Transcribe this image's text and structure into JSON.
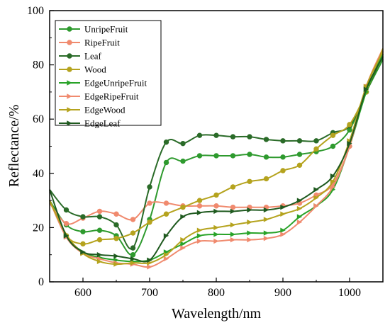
{
  "chart_data": {
    "type": "line",
    "xlabel": "Wavelength/nm",
    "ylabel": "Reflectance/%",
    "xlim": [
      550,
      1050
    ],
    "ylim": [
      0,
      100
    ],
    "xticks": [
      600,
      700,
      800,
      900,
      1000
    ],
    "yticks": [
      0,
      20,
      40,
      60,
      80,
      100
    ],
    "grid": false,
    "legend_position": "top-left",
    "series": [
      {
        "name": "UnripeFruit",
        "color": "#2e9a2e",
        "marker": "circle",
        "x": [
          550,
          575,
          600,
          625,
          650,
          675,
          700,
          725,
          750,
          775,
          800,
          825,
          850,
          875,
          900,
          925,
          950,
          975,
          1000,
          1025,
          1050
        ],
        "y": [
          30,
          21,
          18.5,
          19,
          17,
          10,
          23,
          44,
          44.5,
          46.5,
          46.5,
          46.5,
          47,
          46,
          46,
          47,
          48,
          50,
          56,
          70,
          82
        ]
      },
      {
        "name": "RipeFruit",
        "color": "#f08a6e",
        "marker": "circle",
        "x": [
          550,
          575,
          600,
          625,
          650,
          675,
          700,
          725,
          750,
          775,
          800,
          825,
          850,
          875,
          900,
          925,
          950,
          975,
          1000,
          1025,
          1050
        ],
        "y": [
          29,
          21.5,
          23.5,
          26,
          25,
          23,
          29,
          29,
          28,
          28,
          28,
          27.5,
          27.5,
          27.5,
          28,
          29,
          32,
          36,
          50,
          72,
          86
        ]
      },
      {
        "name": "Leaf",
        "color": "#2a6b28",
        "marker": "circle",
        "x": [
          550,
          575,
          600,
          625,
          650,
          675,
          700,
          725,
          750,
          775,
          800,
          825,
          850,
          875,
          900,
          925,
          950,
          975,
          1000,
          1025,
          1050
        ],
        "y": [
          34,
          26.5,
          24,
          24,
          21,
          12.5,
          35,
          51.5,
          51,
          54,
          54,
          53.5,
          53.5,
          52.5,
          52,
          52,
          52,
          55,
          57.5,
          70,
          84
        ]
      },
      {
        "name": "Wood",
        "color": "#b5a31e",
        "marker": "circle",
        "x": [
          550,
          575,
          600,
          625,
          650,
          675,
          700,
          725,
          750,
          775,
          800,
          825,
          850,
          875,
          900,
          925,
          950,
          975,
          1000,
          1025,
          1050
        ],
        "y": [
          30,
          17,
          14,
          15.5,
          16,
          18,
          22,
          25,
          27.5,
          30,
          32,
          35,
          37,
          38,
          41,
          43,
          49,
          54,
          58,
          70,
          86
        ]
      },
      {
        "name": "EdgeUnripeFruit",
        "color": "#29a329",
        "marker": "triangle-right",
        "x": [
          550,
          575,
          600,
          625,
          650,
          675,
          700,
          725,
          750,
          775,
          800,
          825,
          850,
          875,
          900,
          925,
          950,
          975,
          1000,
          1025,
          1050
        ],
        "y": [
          30,
          17,
          11,
          9,
          8,
          7.5,
          8,
          11,
          14,
          17,
          17.5,
          17.5,
          18,
          18,
          19,
          24,
          28,
          34,
          50,
          70,
          84
        ]
      },
      {
        "name": "EdgeRipeFruit",
        "color": "#f08a6e",
        "marker": "triangle-right",
        "x": [
          550,
          575,
          600,
          625,
          650,
          675,
          700,
          725,
          750,
          775,
          800,
          825,
          850,
          875,
          900,
          925,
          950,
          975,
          1000,
          1025,
          1050
        ],
        "y": [
          30,
          16.5,
          10.5,
          8.5,
          7,
          6.5,
          5.5,
          8.5,
          12.5,
          15,
          15,
          15.5,
          15.5,
          16,
          17.5,
          22,
          28,
          35,
          50,
          72,
          85
        ]
      },
      {
        "name": "EdgeWood",
        "color": "#b5a31e",
        "marker": "triangle-right",
        "x": [
          550,
          575,
          600,
          625,
          650,
          675,
          700,
          725,
          750,
          775,
          800,
          825,
          850,
          875,
          900,
          925,
          950,
          975,
          1000,
          1025,
          1050
        ],
        "y": [
          30,
          17.5,
          10.5,
          7.5,
          6.5,
          7,
          7,
          10,
          15.5,
          19,
          20,
          21,
          22,
          23,
          25,
          27,
          31,
          37,
          52,
          72,
          85
        ]
      },
      {
        "name": "EdgeLeaf",
        "color": "#1f5a1f",
        "marker": "triangle-right",
        "x": [
          550,
          575,
          600,
          625,
          650,
          675,
          700,
          725,
          750,
          775,
          800,
          825,
          850,
          875,
          900,
          925,
          950,
          975,
          1000,
          1025,
          1050
        ],
        "y": [
          34,
          17,
          11,
          10,
          9.5,
          8.5,
          8,
          17,
          24,
          25.5,
          26,
          26,
          26.5,
          26.5,
          27.5,
          30,
          34,
          39,
          51,
          71,
          83
        ]
      }
    ]
  }
}
